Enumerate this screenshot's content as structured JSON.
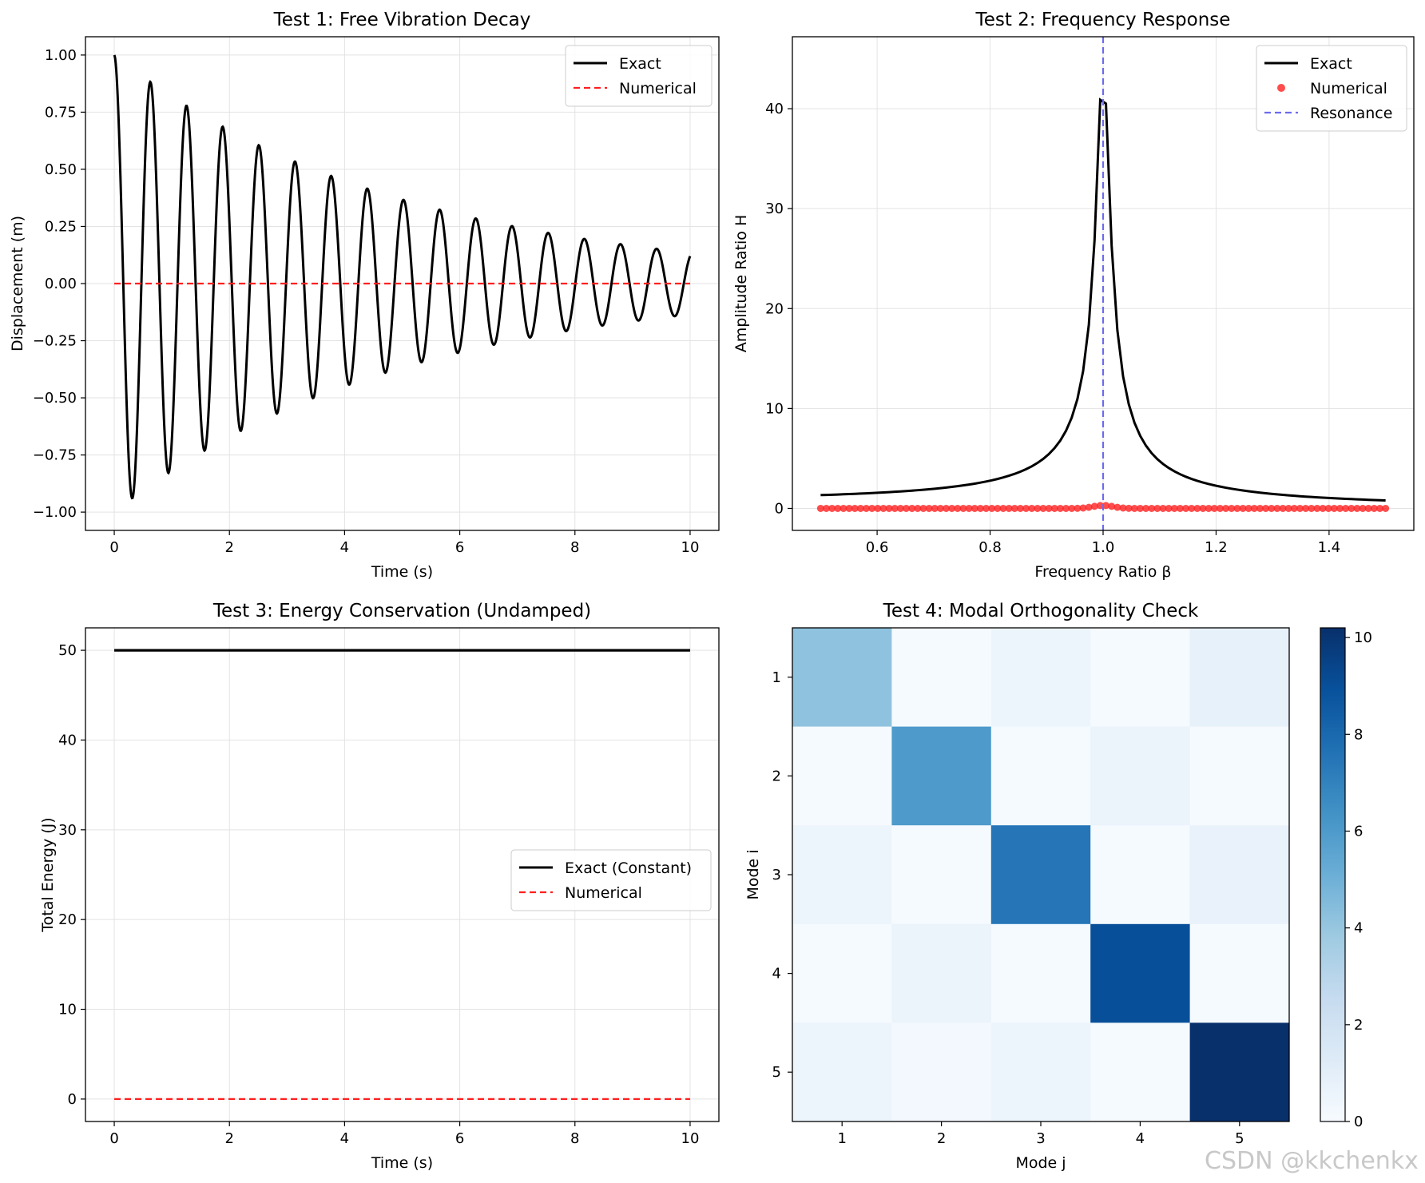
{
  "watermark": "CSDN @kkchenkx",
  "chart_data": [
    {
      "id": "test1",
      "type": "line",
      "title": "Test 1: Free Vibration Decay",
      "xlabel": "Time (s)",
      "ylabel": "Displacement (m)",
      "xlim": [
        -0.5,
        10.5
      ],
      "ylim": [
        -1.08,
        1.08
      ],
      "xticks": [
        0,
        2,
        4,
        6,
        8,
        10
      ],
      "xtick_labels": [
        "0",
        "2",
        "4",
        "6",
        "8",
        "10"
      ],
      "yticks": [
        -1.0,
        -0.75,
        -0.5,
        -0.25,
        0.0,
        0.25,
        0.5,
        0.75,
        1.0
      ],
      "ytick_labels": [
        "−1.00",
        "−0.75",
        "−0.50",
        "−0.25",
        "0.00",
        "0.25",
        "0.50",
        "0.75",
        "1.00"
      ],
      "grid": true,
      "legend_position": "top-right",
      "curve": {
        "kind": "damped_cosine",
        "x_range": [
          0,
          10
        ],
        "amplitude": 1.0,
        "period": 0.628,
        "decay_rate": 0.2
      },
      "series": [
        {
          "name": "Exact",
          "color": "#000000",
          "style": "solid"
        },
        {
          "name": "Numerical",
          "color": "#ff2020",
          "style": "dashed",
          "x": [
            0,
            10
          ],
          "y": [
            0,
            0
          ]
        }
      ]
    },
    {
      "id": "test2",
      "type": "line",
      "title": "Test 2: Frequency Response",
      "xlabel": "Frequency Ratio β",
      "ylabel": "Amplitude Ratio H",
      "xlim": [
        0.45,
        1.55
      ],
      "ylim": [
        -2.2,
        47.2
      ],
      "xticks": [
        0.6,
        0.8,
        1.0,
        1.2,
        1.4
      ],
      "xtick_labels": [
        "0.6",
        "0.8",
        "1.0",
        "1.2",
        "1.4"
      ],
      "yticks": [
        0,
        10,
        20,
        30,
        40
      ],
      "ytick_labels": [
        "0",
        "10",
        "20",
        "30",
        "40"
      ],
      "grid": true,
      "legend_position": "top-right",
      "curve": {
        "kind": "frequency_response",
        "beta_range": [
          0.5,
          1.5
        ],
        "damping_ratio": 0.0112,
        "points": 100
      },
      "series": [
        {
          "name": "Exact",
          "color": "#000000",
          "style": "solid"
        },
        {
          "name": "Numerical",
          "color": "#ff2020",
          "style": "markers",
          "x_range": [
            0.5,
            1.5
          ],
          "points": 100,
          "y_typical": 0.0,
          "y_peak": 0.3
        },
        {
          "name": "Resonance",
          "color": "#6b6bee",
          "style": "dashed",
          "x": 1.0
        }
      ]
    },
    {
      "id": "test3",
      "type": "line",
      "title": "Test 3: Energy Conservation (Undamped)",
      "xlabel": "Time (s)",
      "ylabel": "Total Energy (J)",
      "xlim": [
        -0.5,
        10.5
      ],
      "ylim": [
        -2.5,
        52.5
      ],
      "xticks": [
        0,
        2,
        4,
        6,
        8,
        10
      ],
      "xtick_labels": [
        "0",
        "2",
        "4",
        "6",
        "8",
        "10"
      ],
      "yticks": [
        0,
        10,
        20,
        30,
        40,
        50
      ],
      "ytick_labels": [
        "0",
        "10",
        "20",
        "30",
        "40",
        "50"
      ],
      "grid": true,
      "legend_position": "center-right",
      "series": [
        {
          "name": "Exact (Constant)",
          "color": "#000000",
          "style": "solid",
          "x": [
            0,
            10
          ],
          "y": [
            50,
            50
          ]
        },
        {
          "name": "Numerical",
          "color": "#ff2020",
          "style": "dashed",
          "x": [
            0,
            10
          ],
          "y": [
            0,
            0
          ]
        }
      ]
    },
    {
      "id": "test4",
      "type": "heatmap",
      "title": "Test 4: Modal Orthogonality Check",
      "xlabel": "Mode j",
      "ylabel": "Mode i",
      "xtick_labels": [
        "1",
        "2",
        "3",
        "4",
        "5"
      ],
      "ytick_labels": [
        "1",
        "2",
        "3",
        "4",
        "5"
      ],
      "colormap": "Blues",
      "vmin": 0,
      "vmax": 10.2,
      "colorbar_ticks": [
        0,
        2,
        4,
        6,
        8,
        10
      ],
      "colorbar_tick_labels": [
        "0",
        "2",
        "4",
        "6",
        "8",
        "10"
      ],
      "values": [
        [
          4.2,
          0.1,
          0.5,
          0.1,
          0.8
        ],
        [
          0.1,
          6.0,
          0.1,
          0.6,
          0.1
        ],
        [
          0.5,
          0.1,
          7.5,
          0.1,
          0.7
        ],
        [
          0.1,
          0.6,
          0.1,
          9.0,
          0.1
        ],
        [
          0.5,
          0.2,
          0.5,
          0.1,
          10.2
        ]
      ]
    }
  ]
}
